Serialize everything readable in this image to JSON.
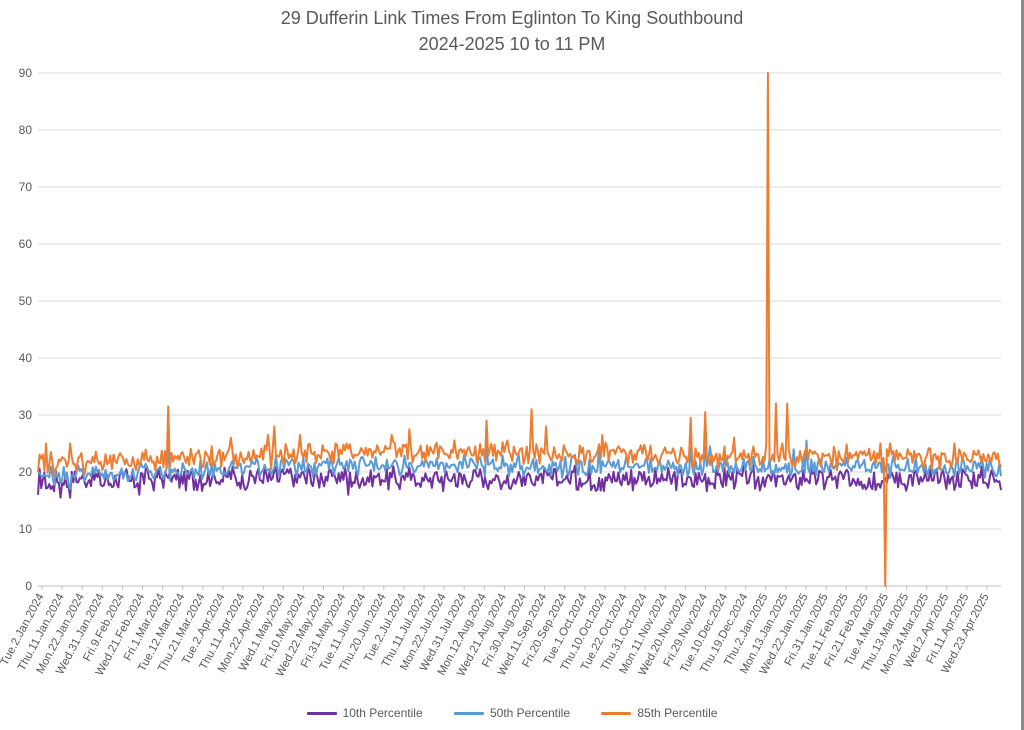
{
  "chart_data": {
    "type": "line",
    "title": "29 Dufferin Link Times From Eglinton To King Southbound",
    "subtitle": "2024-2025 10 to 11 PM",
    "xlabel": "",
    "ylabel": "",
    "ylim": [
      0,
      90
    ],
    "yticks": [
      0,
      10,
      20,
      30,
      40,
      50,
      60,
      70,
      80,
      90
    ],
    "grid": true,
    "legend_position": "bottom",
    "x_start": "2024-01-02",
    "x_end": "2025-04-30",
    "xtick_labels": [
      "Tue.2.Jan.2024",
      "Thu.11.Jan.2024",
      "Mon.22.Jan.2024",
      "Wed.31.Jan.2024",
      "Fri.9.Feb.2024",
      "Wed.21.Feb.2024",
      "Fri.1.Mar.2024",
      "Tue.12.Mar.2024",
      "Thu.21.Mar.2024",
      "Tue.2.Apr.2024",
      "Thu.11.Apr.2024",
      "Mon.22.Apr.2024",
      "Wed.1.May.2024",
      "Fri.10.May.2024",
      "Wed.22.May.2024",
      "Fri.31.May.2024",
      "Tue.11.Jun.2024",
      "Thu.20.Jun.2024",
      "Tue.2.Jul.2024",
      "Thu.11.Jul.2024",
      "Mon.22.Jul.2024",
      "Wed.31.Jul.2024",
      "Mon.12.Aug.2024",
      "Wed.21.Aug.2024",
      "Fri.30.Aug.2024",
      "Wed.11.Sep.2024",
      "Fri.20.Sep.2024",
      "Tue.1.Oct.2024",
      "Thu.10.Oct.2024",
      "Tue.22.Oct.2024",
      "Thu.31.Oct.2024",
      "Mon.11.Nov.2024",
      "Wed.20.Nov.2024",
      "Fri.29.Nov.2024",
      "Tue.10.Dec.2024",
      "Thu.19.Dec.2024",
      "Thu.2.Jan.2025",
      "Mon.13.Jan.2025",
      "Wed.22.Jan.2025",
      "Fri.31.Jan.2025",
      "Tue.11.Feb.2025",
      "Fri.21.Feb.2025",
      "Tue.4.Mar.2025",
      "Thu.13.Mar.2025",
      "Mon.24.Mar.2025",
      "Wed.2.Apr.2025",
      "Fri.11.Apr.2025",
      "Wed.23.Apr.2025"
    ],
    "series": [
      {
        "name": "10th Percentile",
        "color": "#7030A0",
        "baseline": [
          18.5,
          18.5,
          19.0,
          19.0,
          19.0,
          18.8,
          18.8,
          18.8,
          18.8,
          18.8,
          18.8,
          18.8,
          18.8,
          18.8,
          18.8,
          18.8
        ],
        "amplitude": 1.6,
        "points": [
          [
            0,
            16.0
          ],
          [
            8,
            17.0
          ],
          [
            14,
            15.5
          ],
          [
            20,
            15.5
          ],
          [
            63,
            16.0
          ],
          [
            193,
            16.0
          ],
          [
            288,
            17.0
          ],
          [
            497,
            17.2
          ],
          [
            600,
            18.5
          ]
        ]
      },
      {
        "name": "50th Percentile",
        "color": "#5B9BD5",
        "baseline": [
          19.5,
          19.5,
          20.2,
          20.7,
          21.0,
          21.2,
          21.2,
          21.2,
          21.0,
          21.0,
          21.0,
          20.8,
          20.8,
          20.8,
          20.8,
          20.8
        ],
        "amplitude": 1.2,
        "points": [
          [
            0,
            20.0
          ],
          [
            20,
            17.0
          ],
          [
            81,
            25.0
          ],
          [
            279,
            25.0
          ],
          [
            349,
            24.5
          ],
          [
            406,
            24.5
          ],
          [
            415,
            24.5
          ],
          [
            418,
            24.5
          ],
          [
            470,
            24.0
          ],
          [
            478,
            25.5
          ],
          [
            485,
            21.5
          ]
        ]
      },
      {
        "name": "85th Percentile",
        "color": "#ED7D31",
        "baseline": [
          21.5,
          21.5,
          22.5,
          22.5,
          23.0,
          23.5,
          23.5,
          23.5,
          23.0,
          23.0,
          23.0,
          22.5,
          22.5,
          22.5,
          22.5,
          22.5
        ],
        "amplitude": 1.5,
        "points": [
          [
            0,
            20.0
          ],
          [
            5,
            25.0
          ],
          [
            20,
            25.0
          ],
          [
            81,
            31.5
          ],
          [
            120,
            26.0
          ],
          [
            143,
            26.5
          ],
          [
            147,
            28.0
          ],
          [
            163,
            26.5
          ],
          [
            220,
            26.5
          ],
          [
            231,
            27.5
          ],
          [
            279,
            29.0
          ],
          [
            307,
            31.0
          ],
          [
            316,
            28.0
          ],
          [
            351,
            26.5
          ],
          [
            406,
            29.5
          ],
          [
            415,
            30.5
          ],
          [
            433,
            26.0
          ],
          [
            453,
            25.0
          ],
          [
            454,
            90.0
          ],
          [
            456,
            22.0
          ],
          [
            459,
            32.0
          ],
          [
            463,
            25.0
          ],
          [
            466,
            32.0
          ],
          [
            524,
            25.0
          ],
          [
            527,
            0.0
          ],
          [
            530,
            25.0
          ],
          [
            555,
            24.0
          ],
          [
            570,
            25.0
          ],
          [
            600,
            21.0
          ]
        ]
      }
    ]
  }
}
